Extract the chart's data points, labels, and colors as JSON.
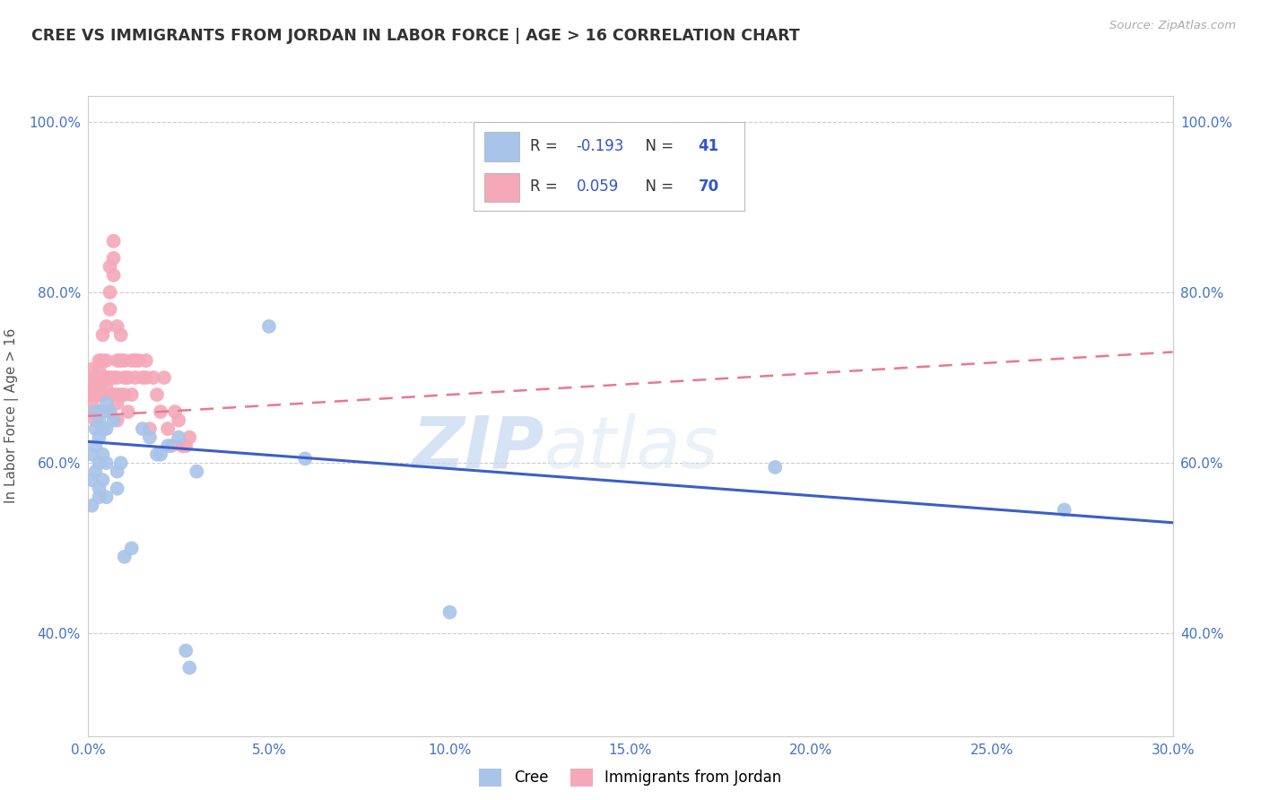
{
  "title": "CREE VS IMMIGRANTS FROM JORDAN IN LABOR FORCE | AGE > 16 CORRELATION CHART",
  "source": "Source: ZipAtlas.com",
  "ylabel": "In Labor Force | Age > 16",
  "xlim": [
    0.0,
    0.3
  ],
  "ylim": [
    0.28,
    1.03
  ],
  "xticks": [
    0.0,
    0.05,
    0.1,
    0.15,
    0.2,
    0.25,
    0.3
  ],
  "yticks": [
    0.4,
    0.6,
    0.8,
    1.0
  ],
  "ytick_labels": [
    "40.0%",
    "60.0%",
    "80.0%",
    "100.0%"
  ],
  "xtick_labels": [
    "0.0%",
    "5.0%",
    "10.0%",
    "15.0%",
    "20.0%",
    "25.0%",
    "30.0%"
  ],
  "cree_R": -0.193,
  "cree_N": 41,
  "jordan_R": 0.059,
  "jordan_N": 70,
  "cree_color": "#a8c4e8",
  "jordan_color": "#f4a8b8",
  "cree_line_color": "#3a5fc8",
  "jordan_line_color": "#e87890",
  "watermark_zip": "ZIP",
  "watermark_atlas": "atlas",
  "cree_x": [
    0.001,
    0.001,
    0.001,
    0.002,
    0.002,
    0.002,
    0.002,
    0.003,
    0.003,
    0.003,
    0.003,
    0.003,
    0.004,
    0.004,
    0.004,
    0.004,
    0.005,
    0.005,
    0.005,
    0.005,
    0.006,
    0.007,
    0.008,
    0.008,
    0.009,
    0.01,
    0.012,
    0.015,
    0.017,
    0.019,
    0.02,
    0.022,
    0.025,
    0.027,
    0.028,
    0.03,
    0.05,
    0.06,
    0.1,
    0.19,
    0.27
  ],
  "cree_y": [
    0.58,
    0.55,
    0.61,
    0.66,
    0.59,
    0.62,
    0.64,
    0.63,
    0.65,
    0.6,
    0.56,
    0.57,
    0.66,
    0.64,
    0.61,
    0.58,
    0.67,
    0.64,
    0.6,
    0.56,
    0.66,
    0.65,
    0.57,
    0.59,
    0.6,
    0.49,
    0.5,
    0.64,
    0.63,
    0.61,
    0.61,
    0.62,
    0.63,
    0.38,
    0.36,
    0.59,
    0.76,
    0.605,
    0.425,
    0.595,
    0.545
  ],
  "jordan_x": [
    0.001,
    0.001,
    0.001,
    0.001,
    0.001,
    0.002,
    0.002,
    0.002,
    0.002,
    0.002,
    0.002,
    0.003,
    0.003,
    0.003,
    0.003,
    0.003,
    0.003,
    0.004,
    0.004,
    0.004,
    0.004,
    0.004,
    0.005,
    0.005,
    0.005,
    0.005,
    0.006,
    0.006,
    0.006,
    0.006,
    0.006,
    0.007,
    0.007,
    0.007,
    0.007,
    0.007,
    0.008,
    0.008,
    0.008,
    0.008,
    0.008,
    0.008,
    0.009,
    0.009,
    0.009,
    0.01,
    0.01,
    0.01,
    0.011,
    0.011,
    0.012,
    0.012,
    0.013,
    0.013,
    0.014,
    0.015,
    0.016,
    0.016,
    0.017,
    0.018,
    0.019,
    0.02,
    0.021,
    0.022,
    0.023,
    0.024,
    0.025,
    0.026,
    0.027,
    0.028
  ],
  "jordan_y": [
    0.68,
    0.66,
    0.71,
    0.67,
    0.69,
    0.65,
    0.69,
    0.7,
    0.66,
    0.68,
    0.7,
    0.72,
    0.69,
    0.7,
    0.66,
    0.68,
    0.71,
    0.75,
    0.7,
    0.72,
    0.68,
    0.7,
    0.76,
    0.72,
    0.7,
    0.69,
    0.83,
    0.8,
    0.78,
    0.7,
    0.66,
    0.84,
    0.86,
    0.82,
    0.7,
    0.68,
    0.65,
    0.68,
    0.7,
    0.72,
    0.76,
    0.67,
    0.75,
    0.72,
    0.68,
    0.68,
    0.7,
    0.72,
    0.66,
    0.7,
    0.68,
    0.72,
    0.7,
    0.72,
    0.72,
    0.7,
    0.72,
    0.7,
    0.64,
    0.7,
    0.68,
    0.66,
    0.7,
    0.64,
    0.62,
    0.66,
    0.65,
    0.62,
    0.62,
    0.63
  ]
}
